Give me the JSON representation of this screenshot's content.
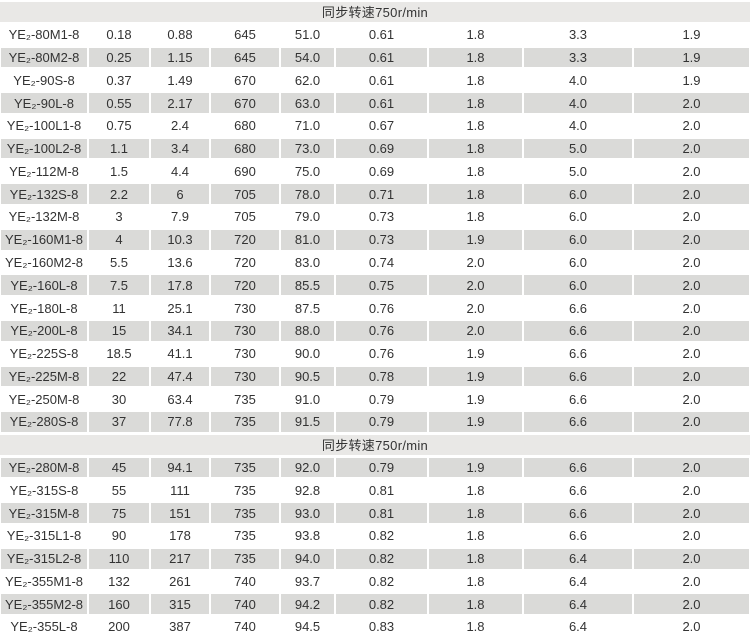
{
  "colors": {
    "stripe_row": "#dadad8",
    "header_band": "#e9e8e6",
    "text": "#333333",
    "background": "#ffffff"
  },
  "chart_data": {
    "type": "table",
    "sections": [
      {
        "header": "同步转速750r/min",
        "rows": [
          {
            "model": "YE₂-80M1-8",
            "values": [
              "0.18",
              "0.88",
              "645",
              "51.0",
              "0.61",
              "1.8",
              "3.3",
              "1.9"
            ]
          },
          {
            "model": "YE₂-80M2-8",
            "values": [
              "0.25",
              "1.15",
              "645",
              "54.0",
              "0.61",
              "1.8",
              "3.3",
              "1.9"
            ]
          },
          {
            "model": "YE₂-90S-8",
            "values": [
              "0.37",
              "1.49",
              "670",
              "62.0",
              "0.61",
              "1.8",
              "4.0",
              "1.9"
            ]
          },
          {
            "model": "YE₂-90L-8",
            "values": [
              "0.55",
              "2.17",
              "670",
              "63.0",
              "0.61",
              "1.8",
              "4.0",
              "2.0"
            ]
          },
          {
            "model": "YE₂-100L1-8",
            "values": [
              "0.75",
              "2.4",
              "680",
              "71.0",
              "0.67",
              "1.8",
              "4.0",
              "2.0"
            ]
          },
          {
            "model": "YE₂-100L2-8",
            "values": [
              "1.1",
              "3.4",
              "680",
              "73.0",
              "0.69",
              "1.8",
              "5.0",
              "2.0"
            ]
          },
          {
            "model": "YE₂-112M-8",
            "values": [
              "1.5",
              "4.4",
              "690",
              "75.0",
              "0.69",
              "1.8",
              "5.0",
              "2.0"
            ]
          },
          {
            "model": "YE₂-132S-8",
            "values": [
              "2.2",
              "6",
              "705",
              "78.0",
              "0.71",
              "1.8",
              "6.0",
              "2.0"
            ]
          },
          {
            "model": "YE₂-132M-8",
            "values": [
              "3",
              "7.9",
              "705",
              "79.0",
              "0.73",
              "1.8",
              "6.0",
              "2.0"
            ]
          },
          {
            "model": "YE₂-160M1-8",
            "values": [
              "4",
              "10.3",
              "720",
              "81.0",
              "0.73",
              "1.9",
              "6.0",
              "2.0"
            ]
          },
          {
            "model": "YE₂-160M2-8",
            "values": [
              "5.5",
              "13.6",
              "720",
              "83.0",
              "0.74",
              "2.0",
              "6.0",
              "2.0"
            ]
          },
          {
            "model": "YE₂-160L-8",
            "values": [
              "7.5",
              "17.8",
              "720",
              "85.5",
              "0.75",
              "2.0",
              "6.0",
              "2.0"
            ]
          },
          {
            "model": "YE₂-180L-8",
            "values": [
              "11",
              "25.1",
              "730",
              "87.5",
              "0.76",
              "2.0",
              "6.6",
              "2.0"
            ]
          },
          {
            "model": "YE₂-200L-8",
            "values": [
              "15",
              "34.1",
              "730",
              "88.0",
              "0.76",
              "2.0",
              "6.6",
              "2.0"
            ]
          },
          {
            "model": "YE₂-225S-8",
            "values": [
              "18.5",
              "41.1",
              "730",
              "90.0",
              "0.76",
              "1.9",
              "6.6",
              "2.0"
            ]
          },
          {
            "model": "YE₂-225M-8",
            "values": [
              "22",
              "47.4",
              "730",
              "90.5",
              "0.78",
              "1.9",
              "6.6",
              "2.0"
            ]
          },
          {
            "model": "YE₂-250M-8",
            "values": [
              "30",
              "63.4",
              "735",
              "91.0",
              "0.79",
              "1.9",
              "6.6",
              "2.0"
            ]
          },
          {
            "model": "YE₂-280S-8",
            "values": [
              "37",
              "77.8",
              "735",
              "91.5",
              "0.79",
              "1.9",
              "6.6",
              "2.0"
            ]
          }
        ]
      },
      {
        "header": "同步转速750r/min",
        "rows": [
          {
            "model": "YE₂-280M-8",
            "values": [
              "45",
              "94.1",
              "735",
              "92.0",
              "0.79",
              "1.9",
              "6.6",
              "2.0"
            ]
          },
          {
            "model": "YE₂-315S-8",
            "values": [
              "55",
              "111",
              "735",
              "92.8",
              "0.81",
              "1.8",
              "6.6",
              "2.0"
            ]
          },
          {
            "model": "YE₂-315M-8",
            "values": [
              "75",
              "151",
              "735",
              "93.0",
              "0.81",
              "1.8",
              "6.6",
              "2.0"
            ]
          },
          {
            "model": "YE₂-315L1-8",
            "values": [
              "90",
              "178",
              "735",
              "93.8",
              "0.82",
              "1.8",
              "6.6",
              "2.0"
            ]
          },
          {
            "model": "YE₂-315L2-8",
            "values": [
              "110",
              "217",
              "735",
              "94.0",
              "0.82",
              "1.8",
              "6.4",
              "2.0"
            ]
          },
          {
            "model": "YE₂-355M1-8",
            "values": [
              "132",
              "261",
              "740",
              "93.7",
              "0.82",
              "1.8",
              "6.4",
              "2.0"
            ]
          },
          {
            "model": "YE₂-355M2-8",
            "values": [
              "160",
              "315",
              "740",
              "94.2",
              "0.82",
              "1.8",
              "6.4",
              "2.0"
            ]
          },
          {
            "model": "YE₂-355L-8",
            "values": [
              "200",
              "387",
              "740",
              "94.5",
              "0.83",
              "1.8",
              "6.4",
              "2.0"
            ]
          }
        ]
      }
    ]
  }
}
